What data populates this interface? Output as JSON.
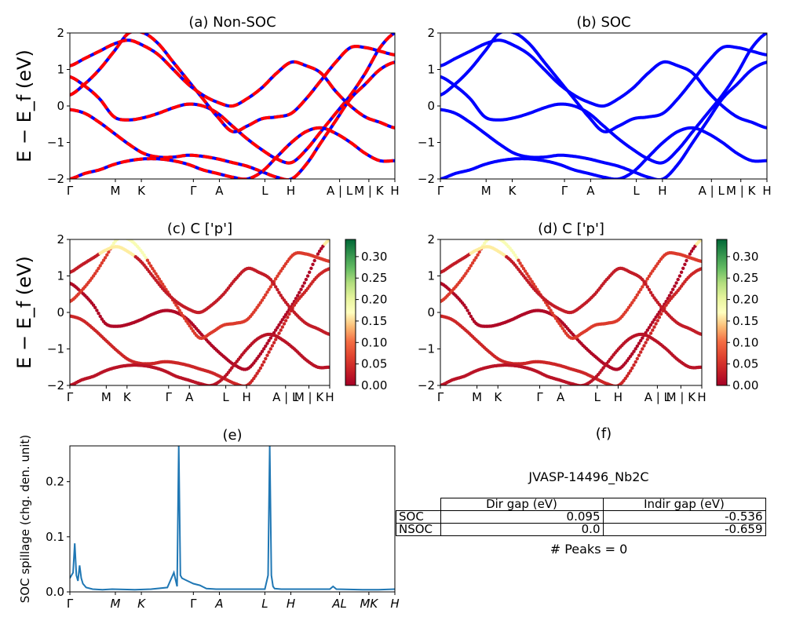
{
  "compound": "JVASP-14496_Nb2C",
  "peaks_text": "# Peaks = 0",
  "gap_table": {
    "headers": [
      "",
      "Dir gap (eV)",
      "Indir gap (eV)"
    ],
    "rows": [
      {
        "label": "SOC",
        "dir": "0.095",
        "indir": "-0.536"
      },
      {
        "label": "NSOC",
        "dir": "0.0",
        "indir": "-0.659"
      }
    ]
  },
  "colors": {
    "soc_band": "#0000ff",
    "nonsoc_band": "#ff0000",
    "spillage_line": "#1f77b4"
  },
  "chart_data": [
    {
      "id": "a",
      "type": "line",
      "title": "(a) Non-SOC",
      "ylabel": "E − E_f (eV)",
      "ylim": [
        -2,
        2
      ],
      "yticks": [
        "2",
        "1",
        "0",
        "−1",
        "−2"
      ],
      "kpath": [
        "Γ",
        "M",
        "K",
        "Γ",
        "A",
        "L",
        "H",
        "A | L",
        "M | K",
        "H"
      ],
      "bands_eV": [
        [
          0.8,
          0.55,
          0.2,
          -0.3,
          -0.38,
          -0.32,
          -0.2,
          -0.05,
          0.05,
          0.0,
          -0.2,
          -0.55,
          -0.9,
          -1.2,
          -1.45,
          -1.55,
          -1.2,
          -0.7,
          -0.2,
          0.3,
          0.9,
          1.6,
          2.0
        ],
        [
          -0.1,
          -0.2,
          -0.45,
          -0.75,
          -1.05,
          -1.3,
          -1.4,
          -1.4,
          -1.35,
          -1.38,
          -1.45,
          -1.55,
          -1.65,
          -1.8,
          -1.95,
          -2.0,
          -1.6,
          -1.0,
          -0.4,
          0.2,
          0.6,
          1.0,
          1.2
        ],
        [
          -2.0,
          -1.85,
          -1.75,
          -1.6,
          -1.5,
          -1.45,
          -1.45,
          -1.5,
          -1.6,
          -1.75,
          -1.85,
          -1.95,
          -2.0,
          -1.8,
          -1.4,
          -1.0,
          -0.7,
          -0.6,
          -0.75,
          -1.0,
          -1.3,
          -1.5,
          -1.5
        ],
        [
          0.3,
          0.6,
          1.0,
          1.5,
          2.0,
          2.0,
          1.7,
          1.2,
          0.7,
          0.2,
          -0.3,
          -0.7,
          -0.55,
          -0.35,
          -0.3,
          -0.2,
          0.2,
          0.7,
          1.2,
          1.6,
          1.6,
          1.5,
          1.4
        ],
        [
          1.1,
          1.3,
          1.5,
          1.7,
          1.8,
          1.65,
          1.4,
          1.0,
          0.6,
          0.3,
          0.1,
          0.0,
          0.2,
          0.5,
          0.9,
          1.2,
          1.1,
          0.9,
          0.4,
          0.0,
          -0.3,
          -0.45,
          -0.6
        ]
      ]
    },
    {
      "id": "b",
      "type": "line",
      "title": "(b) SOC",
      "ylim": [
        -2,
        2
      ],
      "yticks": [
        "2",
        "1",
        "0",
        "−1",
        "−2"
      ],
      "kpath": [
        "Γ",
        "M",
        "K",
        "Γ",
        "A",
        "L",
        "H",
        "A | L",
        "M | K",
        "H"
      ],
      "bands_eV": [
        [
          0.8,
          0.55,
          0.2,
          -0.3,
          -0.38,
          -0.32,
          -0.2,
          -0.05,
          0.05,
          0.0,
          -0.2,
          -0.55,
          -0.9,
          -1.2,
          -1.45,
          -1.55,
          -1.2,
          -0.7,
          -0.2,
          0.3,
          0.9,
          1.6,
          2.0
        ],
        [
          -0.1,
          -0.2,
          -0.45,
          -0.75,
          -1.05,
          -1.3,
          -1.4,
          -1.4,
          -1.35,
          -1.38,
          -1.45,
          -1.55,
          -1.65,
          -1.8,
          -1.95,
          -2.0,
          -1.6,
          -1.0,
          -0.4,
          0.2,
          0.6,
          1.0,
          1.2
        ],
        [
          -2.0,
          -1.85,
          -1.75,
          -1.6,
          -1.5,
          -1.45,
          -1.45,
          -1.5,
          -1.6,
          -1.75,
          -1.85,
          -1.95,
          -2.0,
          -1.8,
          -1.4,
          -1.0,
          -0.7,
          -0.6,
          -0.75,
          -1.0,
          -1.3,
          -1.5,
          -1.5
        ],
        [
          0.3,
          0.6,
          1.0,
          1.5,
          2.0,
          2.0,
          1.7,
          1.2,
          0.7,
          0.2,
          -0.3,
          -0.7,
          -0.55,
          -0.35,
          -0.3,
          -0.2,
          0.2,
          0.7,
          1.2,
          1.6,
          1.6,
          1.5,
          1.4
        ],
        [
          1.1,
          1.3,
          1.5,
          1.7,
          1.8,
          1.65,
          1.4,
          1.0,
          0.6,
          0.3,
          0.1,
          0.0,
          0.2,
          0.5,
          0.9,
          1.2,
          1.1,
          0.9,
          0.4,
          0.0,
          -0.3,
          -0.45,
          -0.6
        ]
      ]
    },
    {
      "id": "c",
      "type": "scatter",
      "title": "(c)  C ['p']",
      "ylabel": "E − E_f (eV)",
      "ylim": [
        -2,
        2
      ],
      "yticks": [
        "2",
        "1",
        "0",
        "−1",
        "−2"
      ],
      "kpath": [
        "Γ",
        "M",
        "K",
        "Γ",
        "A",
        "L",
        "H",
        "A | L",
        "M | K",
        "H"
      ],
      "colorbar": {
        "min": 0.0,
        "max": 0.34,
        "ticks": [
          "0.30",
          "0.25",
          "0.20",
          "0.15",
          "0.10",
          "0.05",
          "0.00"
        ],
        "colormap": "RdYlGn"
      },
      "weights": [
        0.01,
        0.04,
        0.02,
        0.06,
        0.03
      ],
      "bands_eV": [
        [
          0.8,
          0.55,
          0.2,
          -0.3,
          -0.38,
          -0.32,
          -0.2,
          -0.05,
          0.05,
          0.0,
          -0.2,
          -0.55,
          -0.9,
          -1.2,
          -1.45,
          -1.55,
          -1.2,
          -0.7,
          -0.2,
          0.3,
          0.9,
          1.6,
          2.0
        ],
        [
          -0.1,
          -0.2,
          -0.45,
          -0.75,
          -1.05,
          -1.3,
          -1.4,
          -1.4,
          -1.35,
          -1.38,
          -1.45,
          -1.55,
          -1.65,
          -1.8,
          -1.95,
          -2.0,
          -1.6,
          -1.0,
          -0.4,
          0.2,
          0.6,
          1.0,
          1.2
        ],
        [
          -2.0,
          -1.85,
          -1.75,
          -1.6,
          -1.5,
          -1.45,
          -1.45,
          -1.5,
          -1.6,
          -1.75,
          -1.85,
          -1.95,
          -2.0,
          -1.8,
          -1.4,
          -1.0,
          -0.7,
          -0.6,
          -0.75,
          -1.0,
          -1.3,
          -1.5,
          -1.5
        ],
        [
          0.3,
          0.6,
          1.0,
          1.5,
          2.0,
          2.0,
          1.7,
          1.2,
          0.7,
          0.2,
          -0.3,
          -0.7,
          -0.55,
          -0.35,
          -0.3,
          -0.2,
          0.2,
          0.7,
          1.2,
          1.6,
          1.6,
          1.5,
          1.4
        ],
        [
          1.1,
          1.3,
          1.5,
          1.7,
          1.8,
          1.65,
          1.4,
          1.0,
          0.6,
          0.3,
          0.1,
          0.0,
          0.2,
          0.5,
          0.9,
          1.2,
          1.1,
          0.9,
          0.4,
          0.0,
          -0.3,
          -0.45,
          -0.6
        ]
      ]
    },
    {
      "id": "d",
      "type": "scatter",
      "title": "(d) C ['p']",
      "ylim": [
        -2,
        2
      ],
      "yticks": [
        "2",
        "1",
        "0",
        "−1",
        "−2"
      ],
      "kpath": [
        "Γ",
        "M",
        "K",
        "Γ",
        "A",
        "L",
        "H",
        "A | L",
        "M | K",
        "H"
      ],
      "colorbar": {
        "min": 0.0,
        "max": 0.34,
        "ticks": [
          "0.30",
          "0.25",
          "0.20",
          "0.15",
          "0.10",
          "0.05",
          "0.00"
        ],
        "colormap": "RdYlGn"
      },
      "weights": [
        0.01,
        0.04,
        0.02,
        0.06,
        0.03
      ],
      "bands_eV": [
        [
          0.8,
          0.55,
          0.2,
          -0.3,
          -0.38,
          -0.32,
          -0.2,
          -0.05,
          0.05,
          0.0,
          -0.2,
          -0.55,
          -0.9,
          -1.2,
          -1.45,
          -1.55,
          -1.2,
          -0.7,
          -0.2,
          0.3,
          0.9,
          1.6,
          2.0
        ],
        [
          -0.1,
          -0.2,
          -0.45,
          -0.75,
          -1.05,
          -1.3,
          -1.4,
          -1.4,
          -1.35,
          -1.38,
          -1.45,
          -1.55,
          -1.65,
          -1.8,
          -1.95,
          -2.0,
          -1.6,
          -1.0,
          -0.4,
          0.2,
          0.6,
          1.0,
          1.2
        ],
        [
          -2.0,
          -1.85,
          -1.75,
          -1.6,
          -1.5,
          -1.45,
          -1.45,
          -1.5,
          -1.6,
          -1.75,
          -1.85,
          -1.95,
          -2.0,
          -1.8,
          -1.4,
          -1.0,
          -0.7,
          -0.6,
          -0.75,
          -1.0,
          -1.3,
          -1.5,
          -1.5
        ],
        [
          0.3,
          0.6,
          1.0,
          1.5,
          2.0,
          2.0,
          1.7,
          1.2,
          0.7,
          0.2,
          -0.3,
          -0.7,
          -0.55,
          -0.35,
          -0.3,
          -0.2,
          0.2,
          0.7,
          1.2,
          1.6,
          1.6,
          1.5,
          1.4
        ],
        [
          1.1,
          1.3,
          1.5,
          1.7,
          1.8,
          1.65,
          1.4,
          1.0,
          0.6,
          0.3,
          0.1,
          0.0,
          0.2,
          0.5,
          0.9,
          1.2,
          1.1,
          0.9,
          0.4,
          0.0,
          -0.3,
          -0.45,
          -0.6
        ]
      ]
    },
    {
      "id": "e",
      "type": "line",
      "title": "(e)",
      "ylabel": "SOC spillage (chg. den. unit)",
      "ylim": [
        0,
        0.265
      ],
      "yticks": [
        "0.2",
        "0.1",
        "0.0"
      ],
      "kpath": [
        "Γ",
        "M",
        "K",
        "Γ",
        "A",
        "L",
        "H",
        "AL",
        "MK",
        "H"
      ],
      "x_fraction": [
        0,
        0.01,
        0.015,
        0.02,
        0.025,
        0.03,
        0.035,
        0.04,
        0.05,
        0.07,
        0.1,
        0.13,
        0.2,
        0.25,
        0.3,
        0.32,
        0.33,
        0.335,
        0.34,
        0.345,
        0.355,
        0.38,
        0.4,
        0.42,
        0.45,
        0.5,
        0.55,
        0.6,
        0.61,
        0.615,
        0.62,
        0.625,
        0.63,
        0.65,
        0.7,
        0.8,
        0.81,
        0.82,
        0.9,
        0.95,
        1.0
      ],
      "spillage": [
        0.025,
        0.035,
        0.088,
        0.03,
        0.02,
        0.048,
        0.025,
        0.015,
        0.008,
        0.005,
        0.004,
        0.005,
        0.004,
        0.005,
        0.008,
        0.035,
        0.01,
        0.265,
        0.03,
        0.025,
        0.022,
        0.015,
        0.012,
        0.006,
        0.005,
        0.005,
        0.005,
        0.005,
        0.03,
        0.265,
        0.03,
        0.01,
        0.006,
        0.005,
        0.005,
        0.005,
        0.01,
        0.005,
        0.004,
        0.004,
        0.005
      ]
    }
  ]
}
